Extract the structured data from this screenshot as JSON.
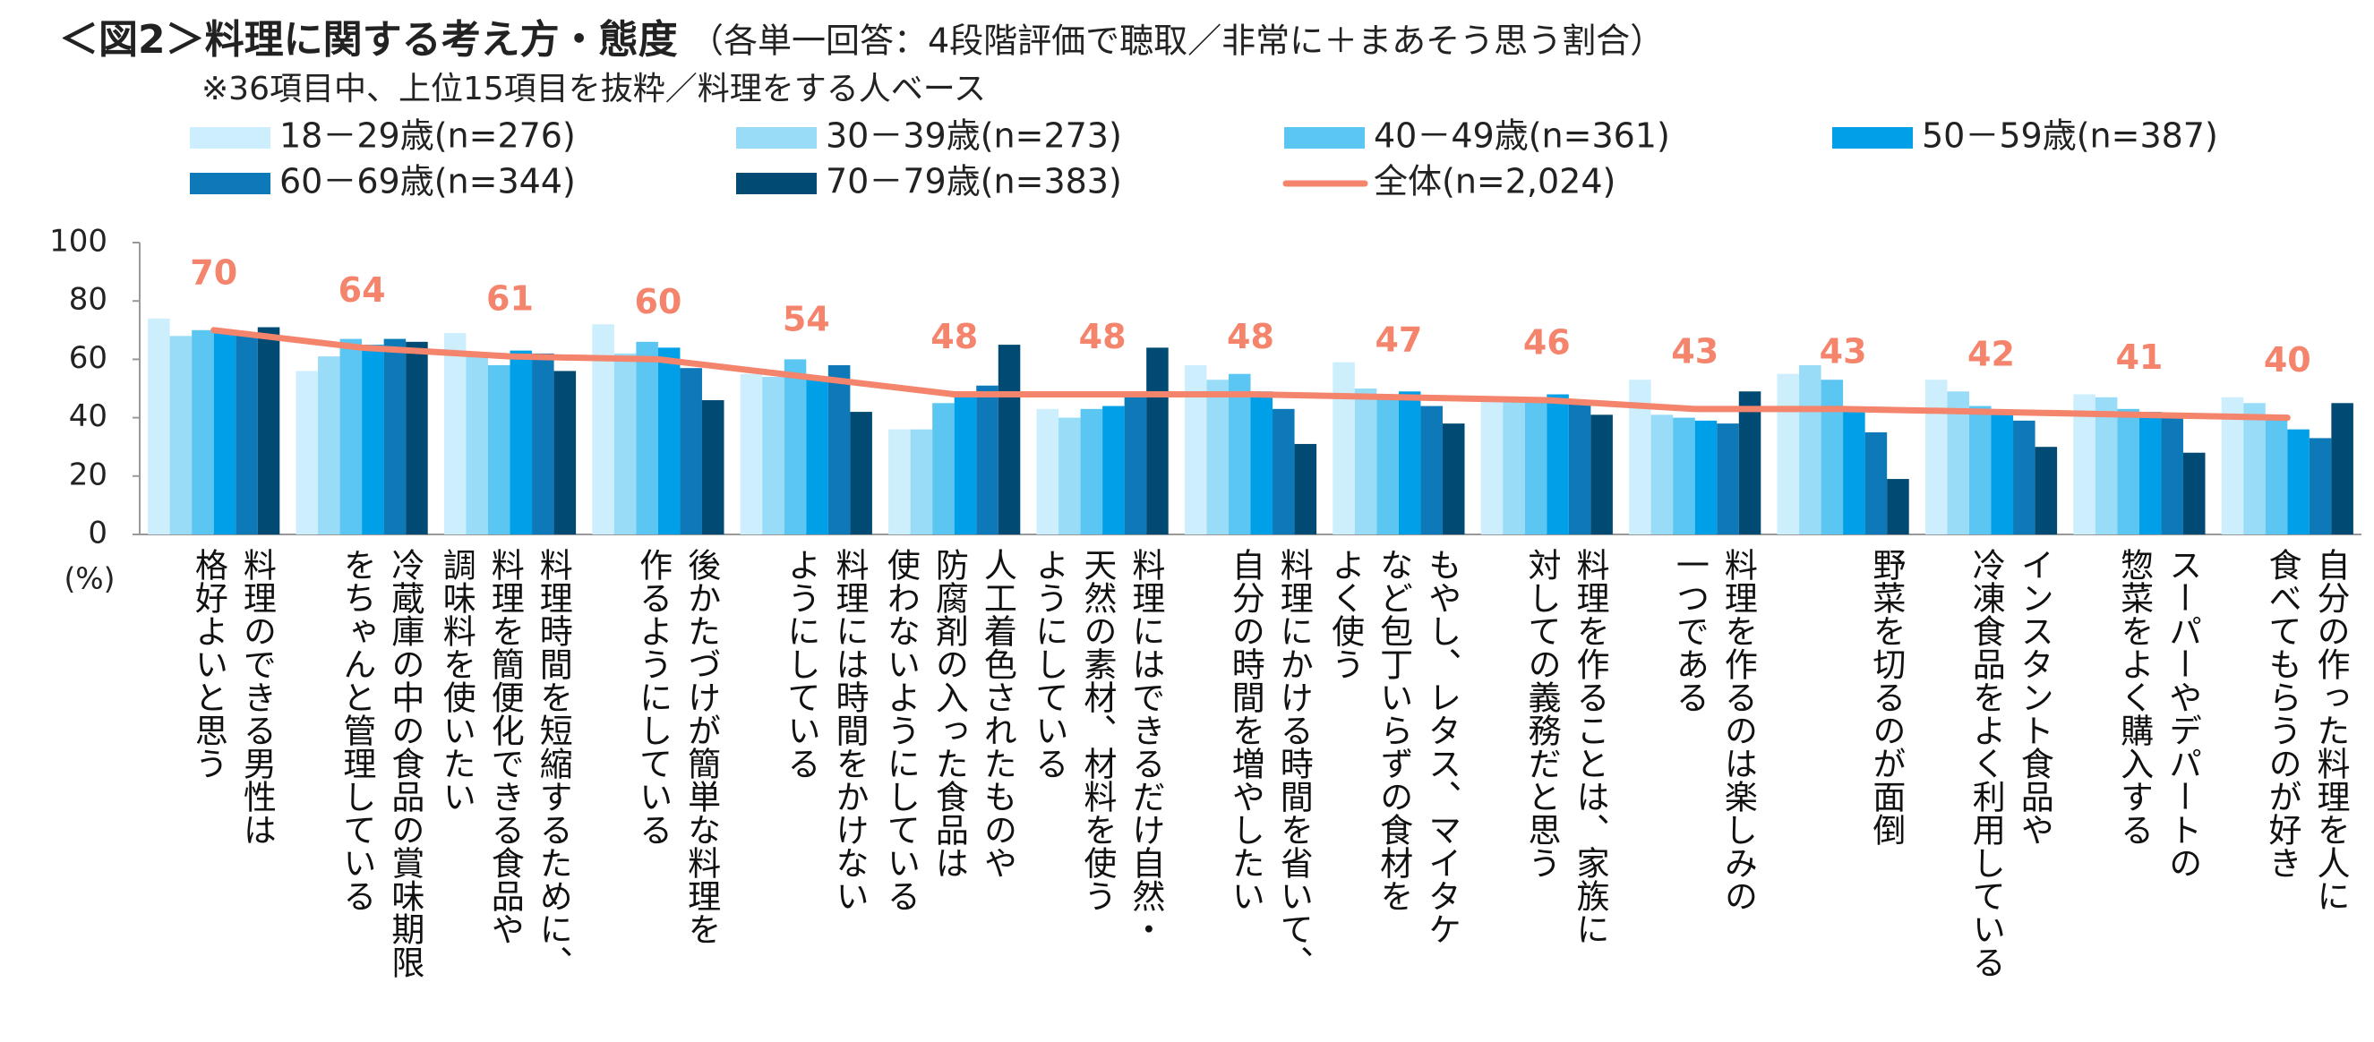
{
  "chart_data": {
    "type": "bar",
    "title": "＜図2＞料理に関する考え方・態度",
    "title_note": "（各単一回答：4段階評価で聴取／非常に＋まあそう思う割合）",
    "subtitle": "※36項目中、上位15項目を抜粋／料理をする人ベース",
    "y_unit": "(%)",
    "categories": [
      "料理のできる男性は\n格好よいと思う",
      "冷蔵庫の中の食品の賞味期限\nをちゃんと管理している",
      "料理時間を短縮するために、\n料理を簡便化できる食品や\n調味料を使いたい",
      "後かたづけが簡単な料理を\n作るようにしている",
      "料理には時間をかけない\nようにしている",
      "人工着色されたものや\n防腐剤の入った食品は\n使わないようにしている",
      "料理にはできるだけ自然・\n天然の素材、材料を使う\nようにしている",
      "料理にかける時間を省いて、\n自分の時間を増やしたい",
      "もやし、レタス、マイタケ\nなど包丁いらずの食材を\nよく使う",
      "料理を作ることは、家族に\n対しての義務だと思う",
      "料理を作るのは楽しみの\n一つである",
      "野菜を切るのが面倒",
      "インスタント食品や\n冷凍食品をよく利用している",
      "スーパーやデパートの\n惣菜をよく購入する",
      "自分の作った料理を人に\n食べてもらうのが好き"
    ],
    "series": [
      {
        "name": "18－29歳(n=276)",
        "color": "#cdeefc",
        "values": [
          74,
          56,
          69,
          72,
          55,
          36,
          43,
          58,
          59,
          46,
          53,
          55,
          53,
          48,
          47
        ]
      },
      {
        "name": "30－39歳(n=273)",
        "color": "#99dcf8",
        "values": [
          68,
          61,
          62,
          62,
          54,
          36,
          40,
          53,
          50,
          46,
          41,
          58,
          49,
          47,
          45
        ]
      },
      {
        "name": "40－49歳(n=361)",
        "color": "#5bc6f2",
        "values": [
          70,
          67,
          58,
          66,
          60,
          45,
          43,
          55,
          48,
          47,
          40,
          53,
          44,
          43,
          41
        ]
      },
      {
        "name": "50－59歳(n=387)",
        "color": "#00a0e9",
        "values": [
          69,
          65,
          63,
          64,
          54,
          47,
          44,
          49,
          49,
          48,
          39,
          42,
          41,
          42,
          36
        ]
      },
      {
        "name": "60－69歳(n=344)",
        "color": "#0d79b8",
        "values": [
          69,
          67,
          62,
          57,
          58,
          51,
          47,
          43,
          44,
          45,
          38,
          35,
          39,
          40,
          33
        ]
      },
      {
        "name": "70－79歳(n=383)",
        "color": "#004a73",
        "values": [
          71,
          66,
          56,
          46,
          42,
          65,
          64,
          31,
          38,
          41,
          49,
          19,
          30,
          28,
          45
        ]
      },
      {
        "name": "全体(n=2,024)",
        "color": "#f4846c",
        "type": "line",
        "values": [
          70,
          64,
          61,
          60,
          54,
          48,
          48,
          48,
          47,
          46,
          43,
          43,
          42,
          41,
          40
        ]
      }
    ],
    "ylim": [
      0,
      100
    ],
    "yticks": [
      0,
      20,
      40,
      60,
      80,
      100
    ],
    "grid": false
  }
}
